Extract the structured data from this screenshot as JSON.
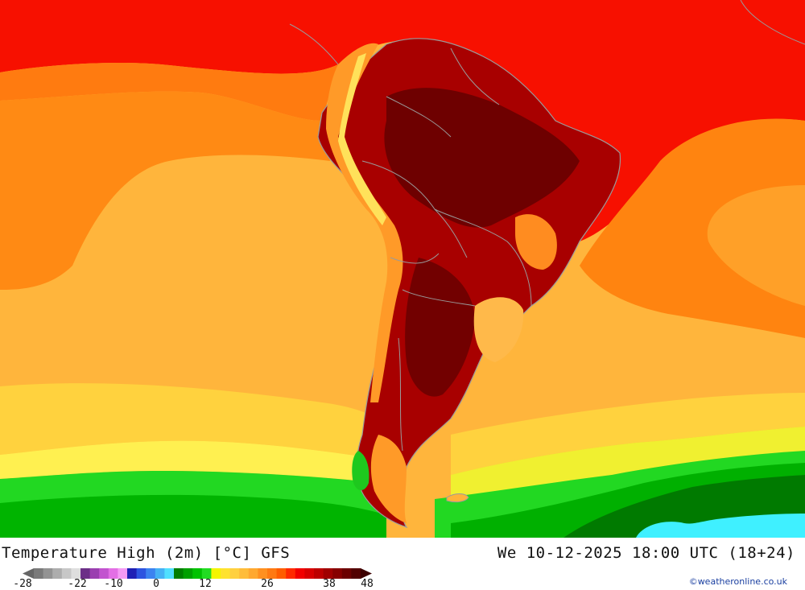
{
  "title": "Temperature High (2m) [°C] GFS",
  "datetime": "We 10-12-2025 18:00 UTC (18+24)",
  "credit": "©weatheronline.co.uk",
  "legend": {
    "ticks": [
      "-28",
      "-22",
      "-10",
      "0",
      "12",
      "26",
      "38",
      "48"
    ],
    "colors": [
      "#7a7a7a",
      "#939393",
      "#adadad",
      "#c7c7c7",
      "#dedede",
      "#6c2f87",
      "#9a3fb0",
      "#c253cf",
      "#e36fe5",
      "#f59af5",
      "#1f1fb5",
      "#2d54e0",
      "#3c83f0",
      "#45b2f5",
      "#50e0ff",
      "#007e00",
      "#00a000",
      "#00c200",
      "#22dc22",
      "#f5f500",
      "#ffe22e",
      "#ffd040",
      "#ffbc3a",
      "#ffa830",
      "#ff9020",
      "#ff7a12",
      "#ff5d00",
      "#ff2a00",
      "#f20000",
      "#d80000",
      "#bd0000",
      "#a00000",
      "#860000",
      "#6b0000",
      "#520000"
    ]
  },
  "colors": {
    "ocean_hot": "#f71000",
    "ocean_warm": "#ff8a14",
    "ocean_mild": "#ffb23a",
    "cool": "#ffe05a",
    "green_dark": "#007a00",
    "green_light": "#22dc22",
    "ice": "#3ff0ff",
    "land_hot": "#8e0000",
    "land_extreme": "#6a0000",
    "border": "#a0a0a0"
  }
}
